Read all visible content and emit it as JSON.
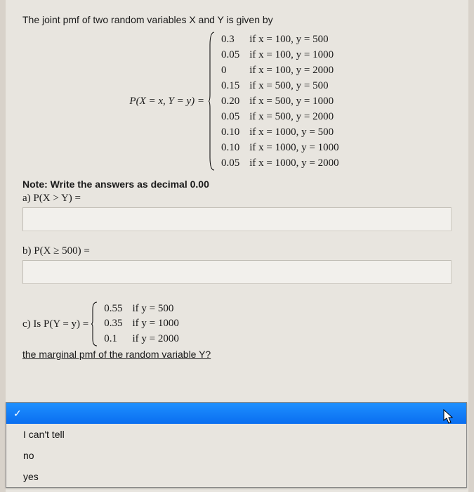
{
  "intro": "The joint pmf of two random variables X and Y is given by",
  "lhs": "P(X = x, Y = y) =",
  "pmf": [
    {
      "p": "0.3",
      "cond": "if x = 100,  y = 500"
    },
    {
      "p": "0.05",
      "cond": "if x = 100,  y = 1000"
    },
    {
      "p": "0",
      "cond": "if x = 100,  y = 2000"
    },
    {
      "p": "0.15",
      "cond": "if x = 500,  y = 500"
    },
    {
      "p": "0.20",
      "cond": "if x = 500,  y = 1000"
    },
    {
      "p": "0.05",
      "cond": "if x = 500,  y = 2000"
    },
    {
      "p": "0.10",
      "cond": "if x = 1000,  y = 500"
    },
    {
      "p": "0.10",
      "cond": "if x = 1000,  y = 1000"
    },
    {
      "p": "0.05",
      "cond": "if x = 1000,  y = 2000"
    }
  ],
  "note": "Note: Write the answers as decimal 0.00",
  "qa": "a) P(X > Y) =",
  "qb": "b) P(X ≥ 500) =",
  "qc_lhs": "c) Is P(Y = y) =",
  "pmf_y": [
    {
      "p": "0.55",
      "cond": "if y = 500"
    },
    {
      "p": "0.35",
      "cond": "if y = 1000"
    },
    {
      "p": "0.1",
      "cond": "if y = 2000"
    }
  ],
  "marginal_q": "the marginal pmf of the random variable Y?",
  "dropdown": {
    "selected_check": "✓",
    "selected": "",
    "options": [
      "I can't tell",
      "no",
      "yes"
    ]
  }
}
